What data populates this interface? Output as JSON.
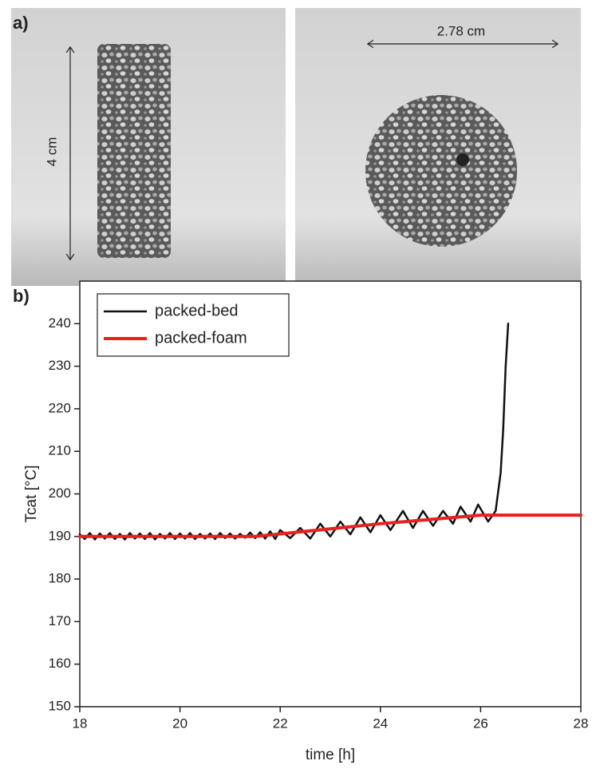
{
  "figure": {
    "panel_a_label": "a)",
    "height_label": "4 cm",
    "diameter_label": "2.78 cm",
    "panel_b_label": "b)"
  },
  "chart_data": {
    "type": "line",
    "x_label": "time [h]",
    "y_label": "Tcat [°C]",
    "xlim": [
      18,
      28
    ],
    "xticks": [
      18,
      20,
      22,
      24,
      26,
      28
    ],
    "ylim": [
      150,
      250
    ],
    "yticks": [
      150,
      160,
      170,
      180,
      190,
      200,
      210,
      220,
      230,
      240
    ],
    "legend": "upper left",
    "series": [
      {
        "name": "packed-bed",
        "color": "#111111",
        "x": [
          18.0,
          18.1,
          18.2,
          18.3,
          18.4,
          18.5,
          18.6,
          18.7,
          18.8,
          18.9,
          19.0,
          19.1,
          19.2,
          19.3,
          19.4,
          19.5,
          19.6,
          19.7,
          19.8,
          19.9,
          20.0,
          20.1,
          20.2,
          20.3,
          20.4,
          20.5,
          20.6,
          20.7,
          20.8,
          20.9,
          21.0,
          21.1,
          21.2,
          21.3,
          21.4,
          21.5,
          21.6,
          21.7,
          21.8,
          21.9,
          22.0,
          22.2,
          22.4,
          22.6,
          22.8,
          23.0,
          23.2,
          23.4,
          23.6,
          23.8,
          24.0,
          24.2,
          24.45,
          24.65,
          24.85,
          25.05,
          25.25,
          25.45,
          25.6,
          25.8,
          25.95,
          26.15,
          26.3,
          26.4,
          26.45,
          26.5,
          26.55
        ],
        "values": [
          190.5,
          189.4,
          190.8,
          189.3,
          190.7,
          189.5,
          190.8,
          189.4,
          190.6,
          189.3,
          190.8,
          189.5,
          190.7,
          189.4,
          190.8,
          189.3,
          190.6,
          189.5,
          190.8,
          189.4,
          190.7,
          189.5,
          190.8,
          189.4,
          190.6,
          189.5,
          190.7,
          189.4,
          190.8,
          189.6,
          190.7,
          189.5,
          190.6,
          189.7,
          190.9,
          189.6,
          191.0,
          189.5,
          191.2,
          189.4,
          191.5,
          189.6,
          192.0,
          189.5,
          193.0,
          190.0,
          193.5,
          190.5,
          194.5,
          191.0,
          195.0,
          191.5,
          196.0,
          192.0,
          196.0,
          192.5,
          196.0,
          193.0,
          197.0,
          193.5,
          197.5,
          193.5,
          196.0,
          205.0,
          215.0,
          230.0,
          240.0
        ]
      },
      {
        "name": "packed-foam",
        "color": "#e8201e",
        "x": [
          18,
          21.5,
          22,
          23,
          24,
          25,
          26,
          27,
          28
        ],
        "values": [
          190,
          190,
          190.6,
          191.8,
          193,
          194,
          195,
          195,
          195
        ]
      }
    ]
  }
}
